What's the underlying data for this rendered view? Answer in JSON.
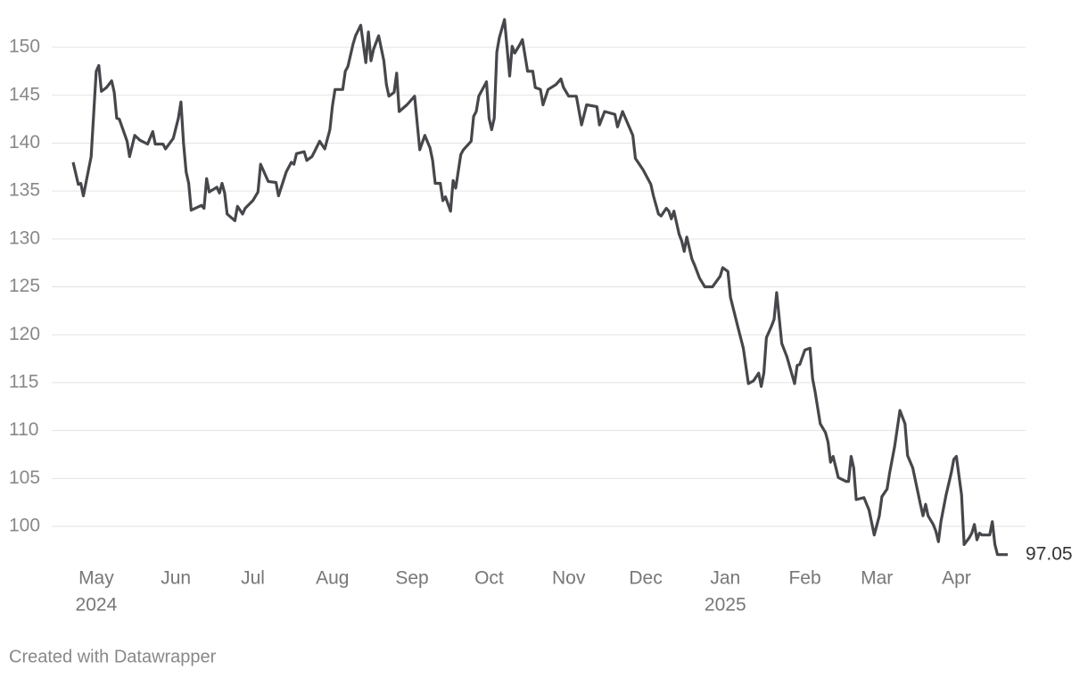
{
  "chart_data": {
    "type": "line",
    "x": [
      -9,
      -7,
      -6,
      -5,
      -2,
      0,
      1,
      2,
      4,
      6,
      7,
      8,
      9,
      12,
      13,
      15,
      17,
      20,
      22,
      23,
      26,
      27,
      30,
      32,
      33,
      34,
      35,
      36,
      37,
      41,
      42,
      43,
      44,
      47,
      48,
      49,
      50,
      51,
      54,
      55,
      57,
      58,
      61,
      63,
      64,
      67,
      70,
      71,
      74,
      76,
      77,
      78,
      81,
      82,
      84,
      85,
      87,
      89,
      91,
      92,
      93,
      96,
      97,
      98,
      100,
      101,
      103,
      105,
      106,
      107,
      108,
      110,
      112,
      113,
      114,
      116,
      117,
      118,
      121,
      124,
      126,
      128,
      130,
      131,
      132,
      134,
      135,
      136,
      138,
      139,
      140,
      142,
      143,
      146,
      147,
      148,
      149,
      152,
      153,
      154,
      155,
      156,
      157,
      159,
      161,
      162,
      163,
      165,
      166,
      168,
      170,
      171,
      173,
      174,
      176,
      179,
      181,
      182,
      184,
      187,
      189,
      191,
      195,
      196,
      198,
      202,
      203,
      205,
      209,
      210,
      211,
      213,
      216,
      217,
      219,
      220,
      222,
      223,
      224,
      225,
      227,
      228,
      229,
      230,
      232,
      233,
      235,
      237,
      240,
      243,
      244,
      246,
      247,
      250,
      252,
      254,
      256,
      258,
      259,
      260,
      261,
      263,
      264,
      265,
      267,
      269,
      272,
      273,
      274,
      276,
      278,
      279,
      280,
      282,
      284,
      285,
      286,
      287,
      289,
      292,
      293,
      294,
      295,
      296,
      299,
      301,
      303,
      305,
      306,
      308,
      309,
      311,
      313,
      315,
      316,
      318,
      321,
      322,
      323,
      324,
      326,
      327,
      328,
      329,
      331,
      333,
      334,
      335,
      337,
      338,
      340,
      341,
      342,
      343,
      344,
      345,
      348,
      349,
      350,
      351,
      355
    ],
    "values": [
      138.0,
      135.7,
      135.8,
      134.5,
      138.6,
      147.5,
      148.1,
      145.4,
      145.8,
      146.5,
      145.3,
      142.6,
      142.5,
      140.2,
      138.6,
      140.8,
      140.3,
      139.9,
      141.2,
      139.9,
      139.9,
      139.4,
      140.5,
      142.6,
      144.3,
      140.0,
      137.0,
      135.8,
      133.0,
      133.5,
      133.2,
      136.3,
      134.9,
      135.4,
      134.8,
      135.8,
      134.8,
      132.6,
      131.9,
      133.4,
      132.6,
      133.2,
      134.0,
      134.9,
      137.8,
      136.0,
      135.9,
      134.5,
      137.0,
      138.0,
      137.8,
      138.9,
      139.1,
      138.2,
      138.6,
      139.1,
      140.2,
      139.4,
      141.4,
      143.9,
      145.6,
      145.6,
      147.5,
      148.0,
      150.3,
      151.2,
      152.3,
      148.4,
      151.6,
      148.6,
      149.8,
      151.2,
      148.6,
      146.1,
      144.9,
      145.3,
      147.3,
      143.3,
      144.0,
      144.9,
      139.3,
      140.8,
      139.5,
      138.2,
      135.8,
      135.8,
      134.0,
      134.4,
      132.9,
      136.1,
      135.3,
      138.8,
      139.3,
      140.2,
      142.8,
      143.3,
      144.9,
      146.4,
      142.6,
      141.4,
      142.6,
      149.5,
      151.0,
      152.9,
      147.0,
      150.1,
      149.4,
      150.3,
      150.8,
      147.5,
      147.5,
      145.8,
      145.6,
      144.0,
      145.6,
      146.1,
      146.7,
      145.8,
      144.9,
      144.9,
      141.9,
      144.0,
      143.8,
      141.9,
      143.3,
      143.0,
      141.7,
      143.3,
      140.8,
      138.4,
      138.0,
      137.2,
      135.7,
      134.5,
      132.6,
      132.4,
      133.2,
      132.9,
      132.1,
      132.9,
      130.5,
      129.8,
      128.7,
      130.2,
      127.9,
      127.3,
      125.9,
      125.0,
      125.0,
      126.1,
      127.0,
      126.6,
      123.9,
      120.7,
      118.6,
      114.9,
      115.2,
      116.0,
      114.6,
      116.0,
      119.7,
      120.9,
      121.6,
      124.4,
      119.1,
      117.7,
      114.9,
      116.8,
      116.9,
      118.4,
      118.6,
      115.4,
      114.0,
      110.7,
      109.8,
      108.8,
      106.7,
      107.3,
      105.1,
      104.7,
      104.7,
      107.3,
      106.1,
      102.8,
      103.0,
      101.7,
      99.1,
      101.1,
      103.1,
      103.9,
      105.6,
      108.4,
      112.1,
      110.7,
      107.4,
      106.1,
      102.3,
      101.1,
      102.3,
      101.1,
      100.2,
      99.5,
      98.4,
      100.5,
      103.3,
      105.6,
      107.0,
      107.3,
      103.3,
      98.1,
      98.8,
      99.3,
      100.2,
      98.6,
      99.3,
      99.1,
      99.1,
      100.5,
      98.1,
      97.05,
      97.05
    ],
    "color": "#46474b",
    "xlim": [
      -9,
      355
    ],
    "xticks": [
      {
        "value": 0,
        "label": "May"
      },
      {
        "value": 31,
        "label": "Jun"
      },
      {
        "value": 61,
        "label": "Jul"
      },
      {
        "value": 92,
        "label": "Aug"
      },
      {
        "value": 123,
        "label": "Sep"
      },
      {
        "value": 153,
        "label": "Oct"
      },
      {
        "value": 184,
        "label": "Nov"
      },
      {
        "value": 214,
        "label": "Dec"
      },
      {
        "value": 245,
        "label": "Jan"
      },
      {
        "value": 276,
        "label": "Feb"
      },
      {
        "value": 304,
        "label": "Mar"
      },
      {
        "value": 335,
        "label": "Apr"
      }
    ],
    "xticks_year": [
      {
        "value": 0,
        "label": "2024"
      },
      {
        "value": 245,
        "label": "2025"
      }
    ],
    "ylim": [
      96,
      153
    ],
    "yticks": [
      100,
      105,
      110,
      115,
      120,
      125,
      130,
      135,
      140,
      145,
      150
    ],
    "grid": true,
    "footer": "Created with Datawrapper"
  }
}
